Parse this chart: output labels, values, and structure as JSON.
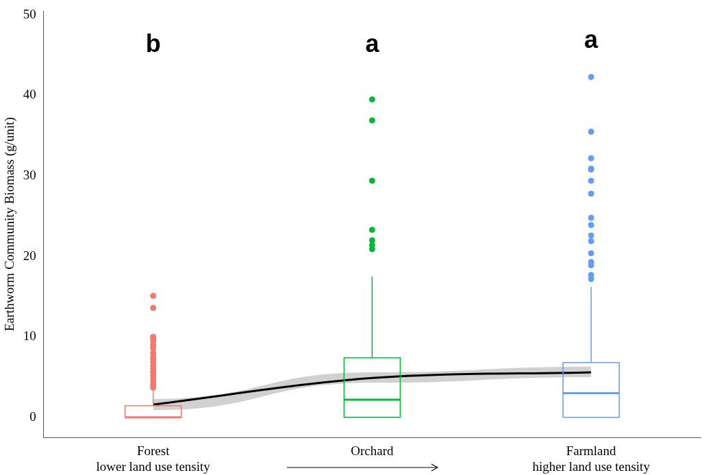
{
  "chart_data": {
    "type": "box",
    "ylabel": "Earthworm Community Biomass (g/unit)",
    "categories": [
      "Forest",
      "Orchard",
      "Farmland"
    ],
    "colors": [
      "#f8766d",
      "#00ba38",
      "#619cff"
    ],
    "boxes": [
      {
        "low": 0,
        "q1": 0,
        "median": 0,
        "q3": 1.45,
        "high": 3.5,
        "outliers": [
          15.1,
          13.6,
          10.0,
          9.8,
          9.5,
          9.0,
          8.6,
          8.0,
          7.5,
          7.2,
          6.8,
          6.4,
          6.0,
          5.6,
          5.2,
          4.8,
          4.4,
          4.0,
          3.7
        ]
      },
      {
        "low": 0,
        "q1": 0,
        "median": 2.2,
        "q3": 7.4,
        "high": 17.5,
        "outliers": [
          39.5,
          36.9,
          29.4,
          23.3,
          22.0,
          21.4,
          20.9
        ]
      },
      {
        "low": 0,
        "q1": 0,
        "median": 3.0,
        "q3": 6.8,
        "high": 16.2,
        "outliers": [
          42.3,
          35.5,
          32.2,
          30.9,
          30.8,
          29.4,
          27.8,
          24.8,
          23.9,
          22.6,
          21.9,
          20.4,
          19.3,
          18.9,
          17.7,
          17.2
        ]
      }
    ],
    "series": [
      {
        "type": "line",
        "x": [
          "Forest",
          "Orchard",
          "Farmland"
        ],
        "values": [
          1.6,
          4.9,
          5.6
        ],
        "lower": [
          0.9,
          4.3,
          5.0
        ],
        "upper": [
          2.3,
          5.6,
          6.3
        ],
        "color": "#000000"
      }
    ],
    "ylim": [
      -2.5,
      50.5
    ],
    "yticks": [
      0,
      10,
      20,
      30,
      40,
      50
    ],
    "grid": false,
    "legend": false,
    "annotations": [
      "b",
      "a",
      "a",
      "lower land use tensity",
      "higher land use tensity"
    ]
  }
}
